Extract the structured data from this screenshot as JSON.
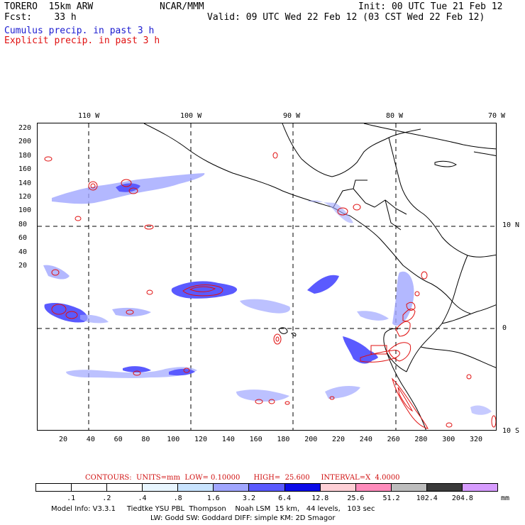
{
  "header": {
    "model": "TORERO  15km ARW",
    "org": "NCAR/MMM",
    "init": "Init: 00 UTC Tue 21 Feb 12",
    "fcst": "Fcst:    33 h",
    "valid": "Valid: 09 UTC Wed 22 Feb 12 (03 CST Wed 22 Feb 12)",
    "field1": "Cumulus precip. in past 3 h",
    "field2": "Explicit precip. in past 3 h"
  },
  "map": {
    "lon_labels": [
      "110 W",
      "100 W",
      "90 W",
      "80 W",
      "70 W"
    ],
    "lat_labels": [
      "10 N",
      "0",
      "10 S"
    ],
    "x_ticks": [
      "20",
      "40",
      "60",
      "80",
      "100",
      "120",
      "140",
      "160",
      "180",
      "200",
      "220",
      "240",
      "260",
      "280",
      "300",
      "320"
    ],
    "y_ticks": [
      "220",
      "200",
      "180",
      "160",
      "140",
      "120",
      "100",
      "80",
      "60",
      "40",
      "20"
    ],
    "colors": {
      "cumulus": "#3b3bff",
      "explicit": "#e01010",
      "land_outline": "#000000"
    }
  },
  "legend": {
    "contours": "CONTOURS:  UNITS=mm  LOW= 0.10000      HIGH=  25.600     INTERVAL=X  4.0000",
    "unit": "mm",
    "ticks": [
      ".1",
      ".2",
      ".4",
      ".8",
      "1.6",
      "3.2",
      "6.4",
      "12.8",
      "25.6",
      "51.2",
      "102.4",
      "204.8"
    ],
    "colors": [
      "#ffffff",
      "#ffffff",
      "#ffffff",
      "#e8f6ff",
      "#c8e4ff",
      "#a0a6ff",
      "#5a5aff",
      "#0a0ae8",
      "#ffd0d6",
      "#ff8cbc",
      "#bdbdbd",
      "#3a3a3a",
      "#d79cff"
    ]
  },
  "footer": {
    "line1": "Model Info: V3.3.1     Tiedtke YSU PBL  Thompson    Noah LSM  15 km,   44 levels,   103 sec",
    "line2": "LW: Godd SW: Goddard DIFF: simple KM: 2D Smagor"
  }
}
